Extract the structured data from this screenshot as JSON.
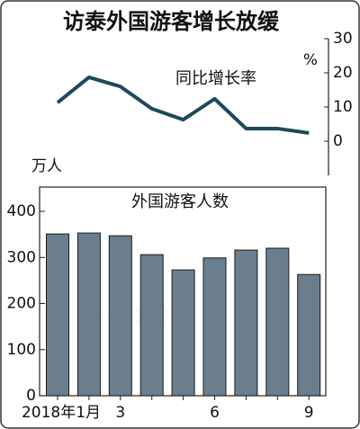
{
  "title": "访泰外国游客增长放缓",
  "watermark": "日经中文网",
  "chart_data": [
    {
      "type": "line",
      "title": "同比增长率",
      "y_label": "%",
      "categories": [
        "2018年1月",
        null,
        "3",
        null,
        null,
        "6",
        null,
        null,
        "9"
      ],
      "series": [
        {
          "name": "同比增长率",
          "color": "#1c4a5c",
          "values": [
            11.3,
            18.7,
            16,
            9.5,
            6.3,
            12.4,
            3.7,
            3.7,
            2.4
          ]
        }
      ],
      "ylim": [
        -10,
        30
      ],
      "yticks": [
        0,
        10,
        20,
        30
      ]
    },
    {
      "type": "bar",
      "title": "外国游客人数",
      "y_label": "万人",
      "categories": [
        "2018年1月",
        null,
        "3",
        null,
        null,
        "6",
        null,
        null,
        "9"
      ],
      "values": [
        351,
        353,
        347,
        306,
        273,
        299,
        316,
        320,
        263
      ],
      "color": "#6a7e8e",
      "ylim": [
        0,
        400
      ],
      "yticks": [
        0,
        100,
        200,
        300,
        400
      ]
    }
  ]
}
